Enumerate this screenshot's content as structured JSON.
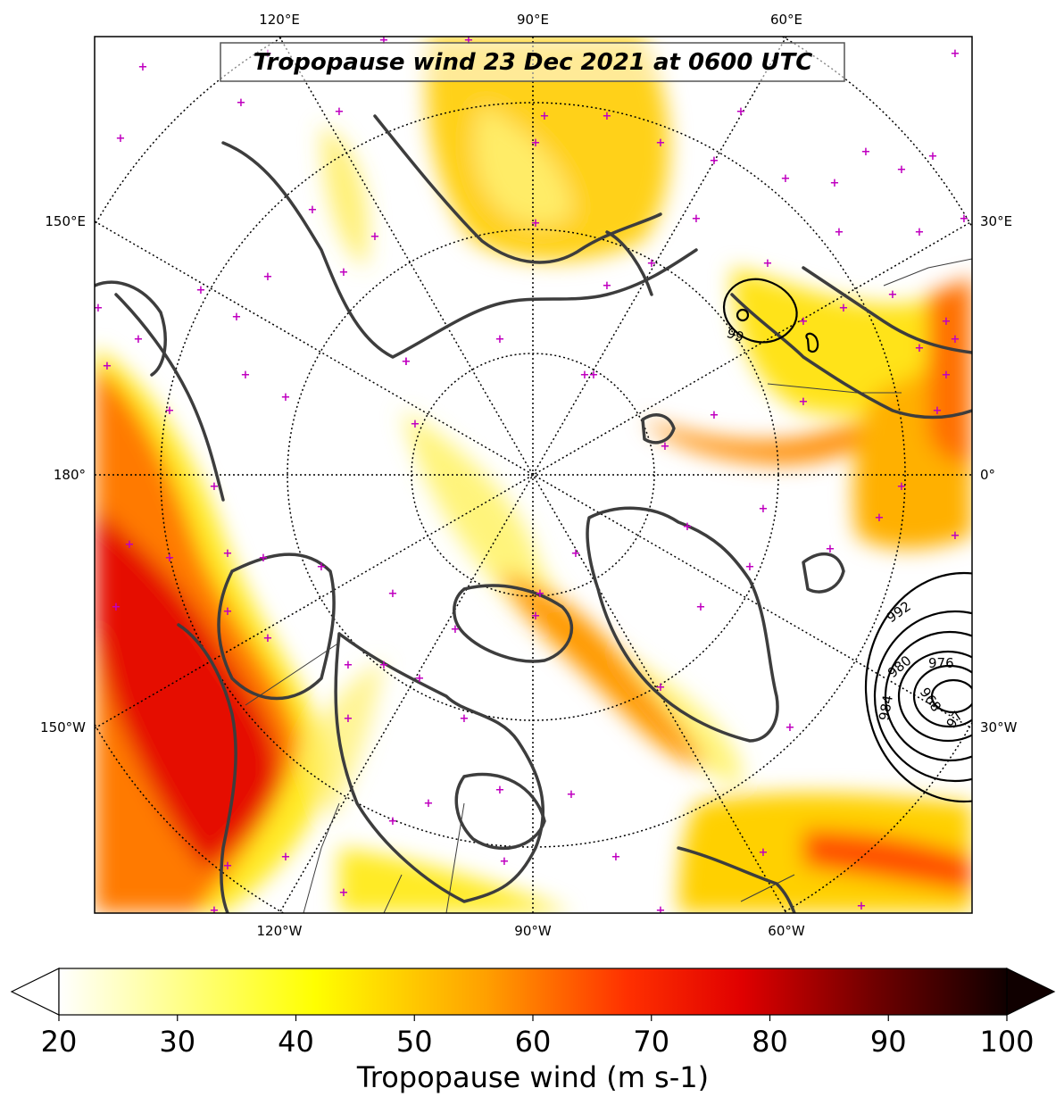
{
  "title": "Tropopause wind 23 Dec 2021 at 0600 UTC",
  "colorbar": {
    "label": "Tropopause wind (m s-1)",
    "ticks": [
      "20",
      "30",
      "40",
      "50",
      "60",
      "70",
      "80",
      "90",
      "100"
    ],
    "min": 20,
    "max": 100,
    "extend": "both",
    "colormap": "hot_r",
    "colors": [
      "#ffffff",
      "#ffff00",
      "#ff8000",
      "#ff0000",
      "#800000",
      "#000000"
    ]
  },
  "longitude_labels": {
    "top": [
      "120°E",
      "90°E",
      "60°E"
    ],
    "bottom": [
      "120°W",
      "90°W",
      "60°W"
    ],
    "left": [
      "150°E",
      "180°",
      "150°W"
    ],
    "right": [
      "30°E",
      "0°",
      "30°W"
    ]
  },
  "pressure_contours": {
    "unit": "hPa",
    "labels": [
      "992",
      "980",
      "976",
      "984",
      "968",
      "97",
      "99"
    ]
  },
  "station_marker": {
    "symbol": "+",
    "color": "#c000c0"
  }
}
